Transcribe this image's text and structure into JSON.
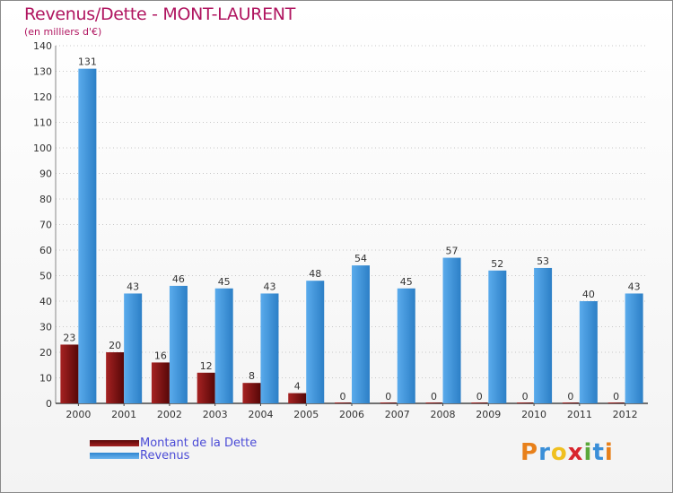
{
  "chart_data": {
    "type": "bar",
    "title": "Revenus/Dette - MONT-LAURENT",
    "subtitle": "(en milliers d'€)",
    "xlabel": "",
    "ylabel": "",
    "ylim": [
      0,
      140
    ],
    "yticks": [
      0,
      10,
      20,
      30,
      40,
      50,
      60,
      70,
      80,
      90,
      100,
      110,
      120,
      130,
      140
    ],
    "categories": [
      "2000",
      "2001",
      "2002",
      "2003",
      "2004",
      "2005",
      "2006",
      "2007",
      "2008",
      "2009",
      "2010",
      "2011",
      "2012"
    ],
    "series": [
      {
        "name": "Montant de la Dette",
        "color": "#7a0f0f",
        "values": [
          23,
          20,
          16,
          12,
          8,
          4,
          0,
          0,
          0,
          0,
          0,
          0,
          0
        ]
      },
      {
        "name": "Revenus",
        "color": "#3d95de",
        "values": [
          131,
          43,
          46,
          45,
          43,
          48,
          54,
          45,
          57,
          52,
          53,
          40,
          43
        ]
      }
    ],
    "legend_position": "bottom-left",
    "grid": "dotted"
  },
  "logo": {
    "letters": [
      {
        "char": "P",
        "color": "#e8801a"
      },
      {
        "char": "r",
        "color": "#3a8fd8"
      },
      {
        "char": "o",
        "color": "#f0c020"
      },
      {
        "char": "x",
        "color": "#d8262e"
      },
      {
        "char": "i",
        "color": "#5aa83a"
      },
      {
        "char": "t",
        "color": "#3a8fd8"
      },
      {
        "char": "i",
        "color": "#e8801a"
      }
    ]
  }
}
